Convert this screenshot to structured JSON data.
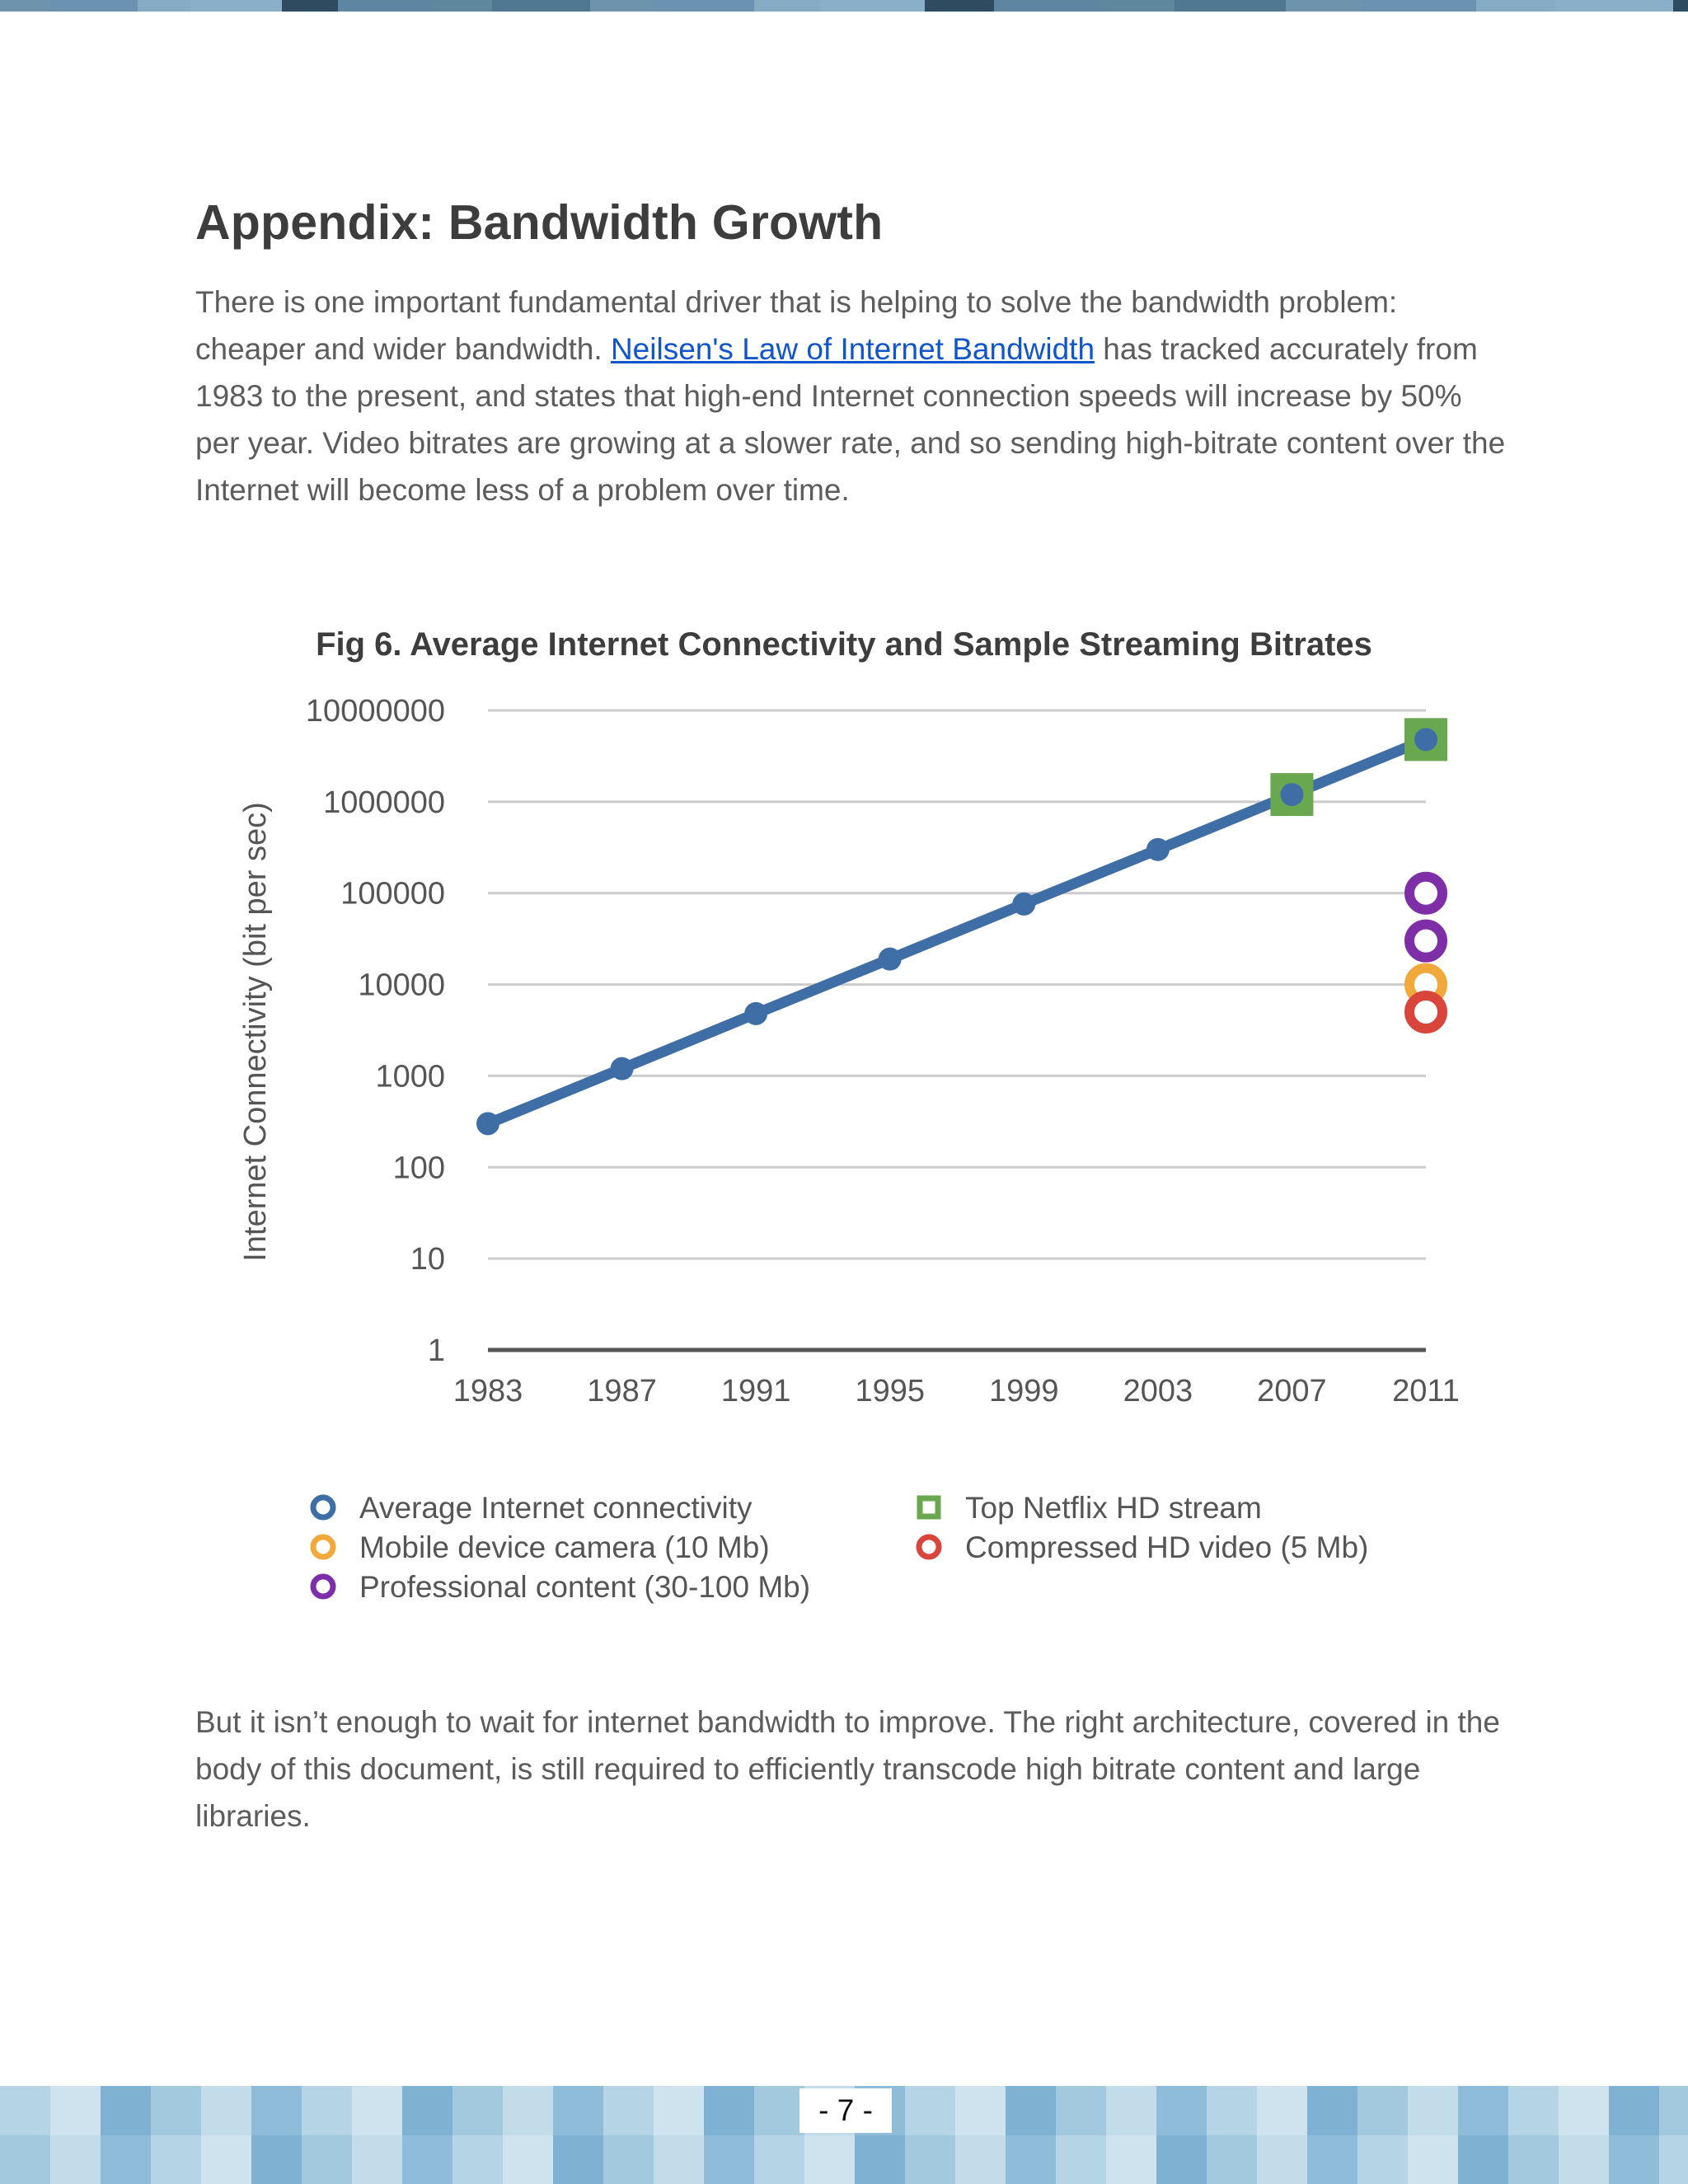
{
  "page": {
    "title": "Appendix: Bandwidth Growth",
    "intro_before_link": "There is one important fundamental driver that is helping to solve the bandwidth problem: cheaper and wider bandwidth. ",
    "intro_link": "Neilsen's Law of Internet Bandwidth",
    "intro_after_link": " has tracked accurately from 1983 to the present, and states that high-end Internet connection speeds will increase by 50% per year. Video bitrates are growing at a slower rate, and so sending high-bitrate content over the Internet will become less of a problem over time.",
    "outro": "But it isn’t enough to wait for internet bandwidth to improve. The right architecture, covered in the body of this document, is still required to efficiently transcode high bitrate content and large libraries.",
    "page_number": "- 7 -"
  },
  "chart_data": {
    "type": "line",
    "title": "Fig 6. Average Internet Connectivity and Sample Streaming Bitrates",
    "xlabel": "",
    "ylabel": "Internet Connectivity (bit per sec)",
    "yscale": "log",
    "ylim": [
      1,
      10000000
    ],
    "y_ticks": [
      "10000000",
      "1000000",
      "100000",
      "10000",
      "1000",
      "100",
      "10",
      "1"
    ],
    "x_ticks": [
      "1983",
      "1987",
      "1991",
      "1995",
      "1999",
      "2003",
      "2007",
      "2011"
    ],
    "grid": true,
    "legend_position": "bottom",
    "series": [
      {
        "name": "Average Internet connectivity",
        "marker": "circle",
        "color": "#3f6ea6",
        "points": [
          [
            1983,
            300
          ],
          [
            1987,
            1200
          ],
          [
            1991,
            4800
          ],
          [
            1995,
            19000
          ],
          [
            1999,
            76000
          ],
          [
            2003,
            300000
          ],
          [
            2007,
            1200000
          ],
          [
            2011,
            4800000
          ]
        ]
      },
      {
        "name": "Top Netflix HD stream",
        "marker": "square",
        "color": "#6aa84f",
        "points": [
          [
            2007,
            1200000
          ],
          [
            2011,
            4800000
          ]
        ]
      },
      {
        "name": "Mobile device camera (10 Mb)",
        "marker": "ring",
        "color": "#f2a93b",
        "points": [
          [
            2011,
            10000
          ]
        ]
      },
      {
        "name": "Compressed HD video (5 Mb)",
        "marker": "ring",
        "color": "#d9453b",
        "points": [
          [
            2011,
            5000
          ]
        ]
      },
      {
        "name": "Professional content (30-100 Mb)",
        "marker": "ring",
        "color": "#7e2fa8",
        "points": [
          [
            2011,
            100000
          ],
          [
            2011,
            30000
          ]
        ]
      }
    ],
    "legend": [
      {
        "label": "Average Internet connectivity",
        "color": "#3f6ea6",
        "marker": "ring"
      },
      {
        "label": "Mobile device camera (10 Mb)",
        "color": "#f2a93b",
        "marker": "ring"
      },
      {
        "label": "Professional content (30-100 Mb)",
        "color": "#7e2fa8",
        "marker": "ring"
      },
      {
        "label": "Top Netflix HD stream",
        "color": "#6aa84f",
        "marker": "square"
      },
      {
        "label": "Compressed HD video (5 Mb)",
        "color": "#d9453b",
        "marker": "ring"
      }
    ]
  }
}
